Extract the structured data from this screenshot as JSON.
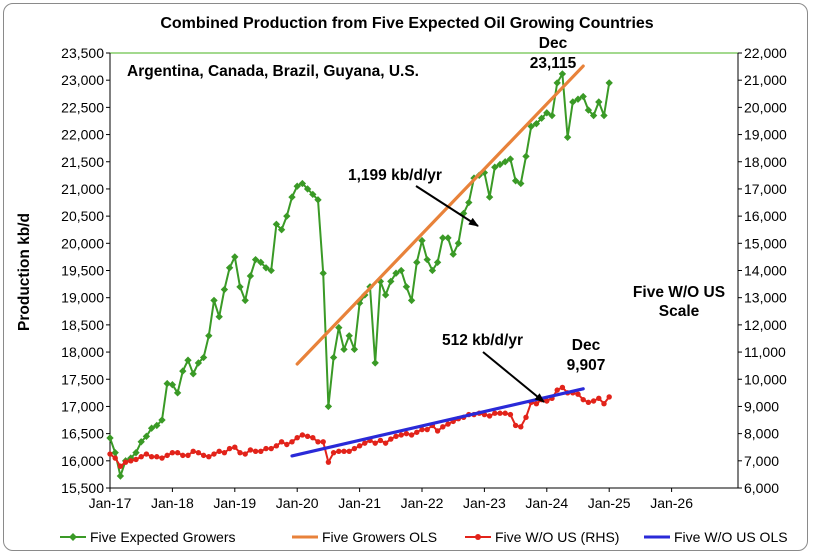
{
  "chart_data": {
    "type": "line",
    "title": "Combined Production from Five Expected Oil Growing Countries",
    "subtitle": "Argentina, Canada, Brazil, Guyana, U.S.",
    "ylabel": "Production kb/d",
    "ylim": [
      15500,
      23500
    ],
    "y2lim": [
      6000,
      22000
    ],
    "yticks": [
      "15,500",
      "16,000",
      "16,500",
      "17,000",
      "17,500",
      "18,000",
      "18,500",
      "19,000",
      "19,500",
      "20,000",
      "20,500",
      "21,000",
      "21,500",
      "22,000",
      "22,500",
      "23,000",
      "23,500"
    ],
    "y2ticks": [
      "6,000",
      "7,000",
      "8,000",
      "9,000",
      "10,000",
      "11,000",
      "12,000",
      "13,000",
      "14,000",
      "15,000",
      "16,000",
      "17,000",
      "18,000",
      "19,000",
      "20,000",
      "21,000",
      "22,000"
    ],
    "xticks": [
      "Jan-17",
      "Jan-18",
      "Jan-19",
      "Jan-20",
      "Jan-21",
      "Jan-22",
      "Jan-23",
      "Jan-24",
      "Jan-25",
      "Jan-26"
    ],
    "grid": false,
    "legend_position": "bottom",
    "annotations": {
      "slope1": "1,199 kb/d/yr",
      "slope2": "512 kb/d/yr",
      "dec1_label": "Dec",
      "dec1_value": "23,115",
      "dec2_label": "Dec",
      "dec2_value": "9,907",
      "rhs_note_1": "Five W/O US",
      "rhs_note_2": "Scale"
    },
    "series": [
      {
        "name": "Five Expected Growers",
        "axis": "left",
        "color": "#3a9a26",
        "values": [
          16420,
          16150,
          15720,
          16000,
          16050,
          16150,
          16350,
          16450,
          16600,
          16650,
          16750,
          17420,
          17400,
          17250,
          17650,
          17850,
          17600,
          17800,
          17900,
          18300,
          18950,
          18650,
          19150,
          19550,
          19750,
          19200,
          18950,
          19400,
          19700,
          19650,
          19550,
          19500,
          20350,
          20250,
          20500,
          20850,
          21050,
          21100,
          21000,
          20900,
          20800,
          19450,
          17000,
          17900,
          18450,
          18050,
          18300,
          18050,
          18900,
          19050,
          19200,
          17800,
          19300,
          19050,
          19300,
          19450,
          19500,
          19200,
          18950,
          19650,
          20050,
          19700,
          19500,
          19650,
          20100,
          20100,
          19800,
          20000,
          20550,
          20750,
          21200,
          21250,
          21300,
          20850,
          21400,
          21450,
          21500,
          21550,
          21150,
          21100,
          21600,
          22150,
          22200,
          22300,
          22400,
          22350,
          22950,
          23115,
          21950,
          22600,
          22650,
          22700,
          22450,
          22350,
          22600,
          22350,
          22950
        ]
      },
      {
        "name": "Five Growers OLS",
        "axis": "left",
        "color": "#e8823a",
        "x_start": "Jan-20",
        "x_end": "Aug-24",
        "values": [
          17780,
          23260
        ]
      },
      {
        "name": "Five W/O US (RHS)",
        "axis": "right",
        "color": "#e2231a",
        "values": [
          7250,
          7100,
          6800,
          6950,
          7000,
          7050,
          7150,
          7250,
          7150,
          7150,
          7100,
          7200,
          7300,
          7300,
          7200,
          7200,
          7350,
          7300,
          7200,
          7150,
          7250,
          7350,
          7300,
          7450,
          7500,
          7300,
          7250,
          7400,
          7350,
          7350,
          7450,
          7450,
          7550,
          7700,
          7600,
          7700,
          7850,
          7950,
          7900,
          7850,
          7700,
          7700,
          6950,
          7300,
          7350,
          7350,
          7350,
          7450,
          7550,
          7650,
          7750,
          7650,
          7750,
          7650,
          7800,
          7900,
          7950,
          8000,
          7950,
          8050,
          8150,
          8150,
          8300,
          8100,
          8250,
          8350,
          8450,
          8550,
          8600,
          8700,
          8700,
          8750,
          8700,
          8650,
          8750,
          8750,
          8750,
          8700,
          8300,
          8250,
          8600,
          9150,
          9100,
          9250,
          9200,
          9300,
          9600,
          9700,
          9500,
          9500,
          9450,
          9250,
          9150,
          9200,
          9300,
          9100,
          9350
        ]
      },
      {
        "name": "Five W/O US OLS",
        "axis": "right",
        "color": "#2a2ad8",
        "x_start": "Dec-19",
        "x_end": "Aug-24",
        "values": [
          7180,
          9650
        ]
      }
    ]
  }
}
